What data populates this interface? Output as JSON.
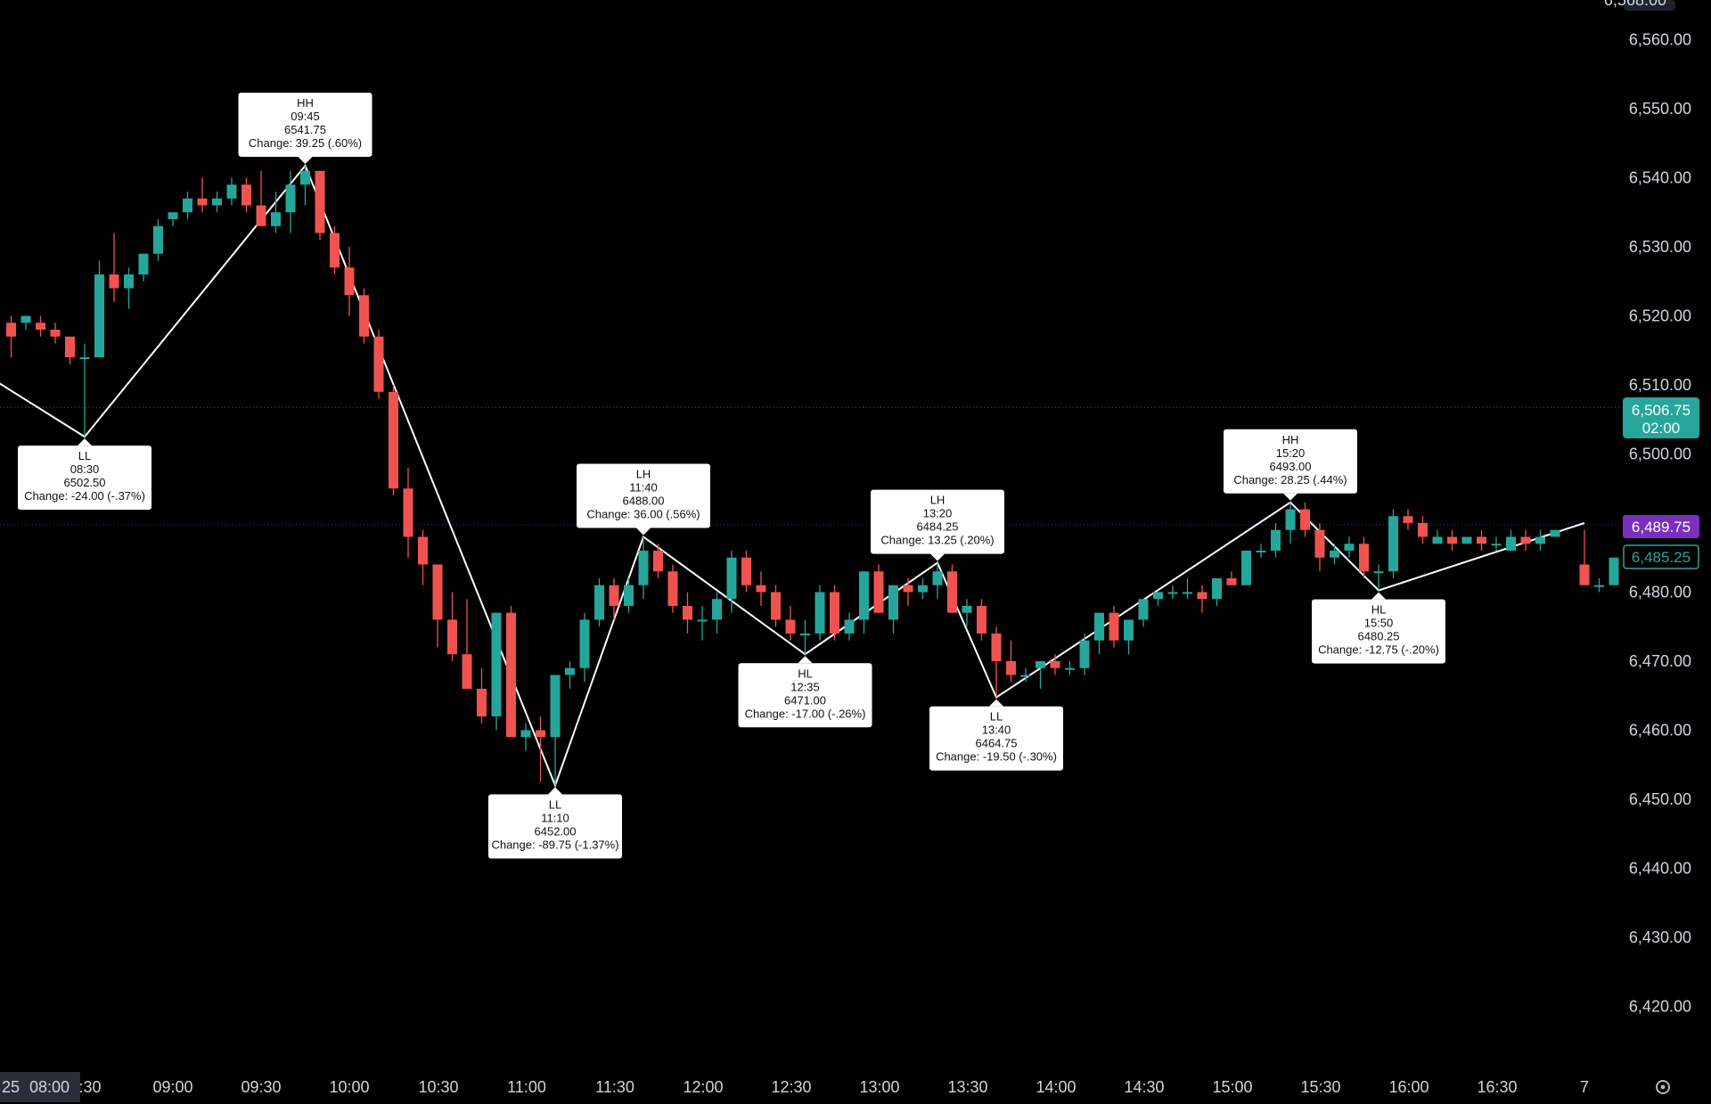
{
  "colors": {
    "background": "#000000",
    "bullish": "#26a69a",
    "bearish": "#ef5350",
    "zigzag": "#ffffff",
    "axis_text": "#d1d4dc",
    "price_badge_bg": "#26a69a",
    "purple_badge_bg": "#7b2fbf",
    "pivot_box_bg": "#ffffff"
  },
  "price_axis": {
    "ticks": [
      "6,560.00",
      "6,550.00",
      "6,540.00",
      "6,530.00",
      "6,520.00",
      "6,510.00",
      "6,500.00",
      "6,490.00",
      "6,480.00",
      "6,470.00",
      "6,460.00",
      "6,450.00",
      "6,440.00",
      "6,430.00",
      "6,420.00"
    ],
    "top_cut_label": "6,568.00"
  },
  "time_axis": {
    "current_date_label": "25",
    "current_time_label": "08:00",
    "ticks": [
      ":30",
      "09:00",
      "09:30",
      "10:00",
      "10:30",
      "11:00",
      "11:30",
      "12:00",
      "12:30",
      "13:00",
      "13:30",
      "14:00",
      "14:30",
      "15:00",
      "15:30",
      "16:00",
      "16:30",
      "7"
    ],
    "settings_icon": "gear-icon"
  },
  "badges": {
    "last_price": "6,506.75",
    "countdown": "02:00",
    "purple_level": "6,489.75",
    "outline_level": "6,485.25"
  },
  "chart_data": {
    "type": "candlestick",
    "y_range": [
      6413,
      6568
    ],
    "interval_minutes": 5,
    "candles": [
      {
        "t": "08:05",
        "o": 6519,
        "h": 6520,
        "l": 6514,
        "c": 6517
      },
      {
        "t": "08:10",
        "o": 6519,
        "h": 6520,
        "l": 6518,
        "c": 6520
      },
      {
        "t": "08:15",
        "o": 6519,
        "h": 6520,
        "l": 6517,
        "c": 6518
      },
      {
        "t": "08:20",
        "o": 6518,
        "h": 6519,
        "l": 6516,
        "c": 6517
      },
      {
        "t": "08:25",
        "o": 6517,
        "h": 6517,
        "l": 6513,
        "c": 6514
      },
      {
        "t": "08:30",
        "o": 6514,
        "h": 6516,
        "l": 6502.5,
        "c": 6514
      },
      {
        "t": "08:35",
        "o": 6514,
        "h": 6528,
        "l": 6514,
        "c": 6526
      },
      {
        "t": "08:40",
        "o": 6526,
        "h": 6532,
        "l": 6522,
        "c": 6524
      },
      {
        "t": "08:45",
        "o": 6524,
        "h": 6527,
        "l": 6521,
        "c": 6526
      },
      {
        "t": "08:50",
        "o": 6526,
        "h": 6529,
        "l": 6525,
        "c": 6529
      },
      {
        "t": "08:55",
        "o": 6529,
        "h": 6534,
        "l": 6528,
        "c": 6533
      },
      {
        "t": "09:00",
        "o": 6534,
        "h": 6535,
        "l": 6533,
        "c": 6535
      },
      {
        "t": "09:05",
        "o": 6535,
        "h": 6538,
        "l": 6534,
        "c": 6537
      },
      {
        "t": "09:10",
        "o": 6537,
        "h": 6540,
        "l": 6535,
        "c": 6536
      },
      {
        "t": "09:15",
        "o": 6536,
        "h": 6538,
        "l": 6535,
        "c": 6537
      },
      {
        "t": "09:20",
        "o": 6537,
        "h": 6540,
        "l": 6536,
        "c": 6539
      },
      {
        "t": "09:25",
        "o": 6539,
        "h": 6540,
        "l": 6535,
        "c": 6536
      },
      {
        "t": "09:30",
        "o": 6536,
        "h": 6541,
        "l": 6533,
        "c": 6533
      },
      {
        "t": "09:35",
        "o": 6533,
        "h": 6538,
        "l": 6532,
        "c": 6535
      },
      {
        "t": "09:40",
        "o": 6535,
        "h": 6541,
        "l": 6532,
        "c": 6539
      },
      {
        "t": "09:45",
        "o": 6539,
        "h": 6541.75,
        "l": 6536,
        "c": 6541
      },
      {
        "t": "09:50",
        "o": 6541,
        "h": 6541,
        "l": 6531,
        "c": 6532
      },
      {
        "t": "09:55",
        "o": 6532,
        "h": 6533,
        "l": 6526,
        "c": 6527
      },
      {
        "t": "10:00",
        "o": 6527,
        "h": 6530,
        "l": 6520,
        "c": 6523
      },
      {
        "t": "10:05",
        "o": 6523,
        "h": 6524,
        "l": 6516,
        "c": 6517
      },
      {
        "t": "10:10",
        "o": 6517,
        "h": 6518,
        "l": 6508,
        "c": 6509
      },
      {
        "t": "10:15",
        "o": 6509,
        "h": 6510,
        "l": 6494,
        "c": 6495
      },
      {
        "t": "10:20",
        "o": 6495,
        "h": 6498,
        "l": 6485,
        "c": 6488
      },
      {
        "t": "10:25",
        "o": 6488,
        "h": 6489,
        "l": 6481,
        "c": 6484
      },
      {
        "t": "10:30",
        "o": 6484,
        "h": 6484,
        "l": 6472,
        "c": 6476
      },
      {
        "t": "10:35",
        "o": 6476,
        "h": 6480,
        "l": 6470,
        "c": 6471
      },
      {
        "t": "10:40",
        "o": 6471,
        "h": 6479,
        "l": 6467,
        "c": 6466
      },
      {
        "t": "10:45",
        "o": 6466,
        "h": 6469,
        "l": 6461,
        "c": 6462
      },
      {
        "t": "10:50",
        "o": 6462,
        "h": 6477,
        "l": 6460,
        "c": 6477
      },
      {
        "t": "10:55",
        "o": 6477,
        "h": 6478,
        "l": 6459,
        "c": 6459
      },
      {
        "t": "11:00",
        "o": 6459,
        "h": 6461,
        "l": 6457,
        "c": 6460
      },
      {
        "t": "11:05",
        "o": 6460,
        "h": 6462,
        "l": 6452.5,
        "c": 6459
      },
      {
        "t": "11:10",
        "o": 6459,
        "h": 6468,
        "l": 6452,
        "c": 6468
      },
      {
        "t": "11:15",
        "o": 6468,
        "h": 6470,
        "l": 6466,
        "c": 6469
      },
      {
        "t": "11:20",
        "o": 6469,
        "h": 6477,
        "l": 6467,
        "c": 6476
      },
      {
        "t": "11:25",
        "o": 6476,
        "h": 6482,
        "l": 6475,
        "c": 6481
      },
      {
        "t": "11:30",
        "o": 6481,
        "h": 6482,
        "l": 6476,
        "c": 6478
      },
      {
        "t": "11:35",
        "o": 6478,
        "h": 6482,
        "l": 6477,
        "c": 6481
      },
      {
        "t": "11:40",
        "o": 6481,
        "h": 6488,
        "l": 6479,
        "c": 6486
      },
      {
        "t": "11:45",
        "o": 6486,
        "h": 6487,
        "l": 6482,
        "c": 6483
      },
      {
        "t": "11:50",
        "o": 6483,
        "h": 6484,
        "l": 6477,
        "c": 6478
      },
      {
        "t": "11:55",
        "o": 6478,
        "h": 6480,
        "l": 6474,
        "c": 6476
      },
      {
        "t": "12:00",
        "o": 6476,
        "h": 6478,
        "l": 6473,
        "c": 6476
      },
      {
        "t": "12:05",
        "o": 6476,
        "h": 6480,
        "l": 6474,
        "c": 6479
      },
      {
        "t": "12:10",
        "o": 6479,
        "h": 6486,
        "l": 6477,
        "c": 6485
      },
      {
        "t": "12:15",
        "o": 6485,
        "h": 6486,
        "l": 6480,
        "c": 6481
      },
      {
        "t": "12:20",
        "o": 6481,
        "h": 6483,
        "l": 6478,
        "c": 6480
      },
      {
        "t": "12:25",
        "o": 6480,
        "h": 6481,
        "l": 6475,
        "c": 6476
      },
      {
        "t": "12:30",
        "o": 6476,
        "h": 6478,
        "l": 6473,
        "c": 6474
      },
      {
        "t": "12:35",
        "o": 6474,
        "h": 6476,
        "l": 6471,
        "c": 6474
      },
      {
        "t": "12:40",
        "o": 6474,
        "h": 6481,
        "l": 6473,
        "c": 6480
      },
      {
        "t": "12:45",
        "o": 6480,
        "h": 6481,
        "l": 6473,
        "c": 6474
      },
      {
        "t": "12:50",
        "o": 6474,
        "h": 6477,
        "l": 6473,
        "c": 6476
      },
      {
        "t": "12:55",
        "o": 6476,
        "h": 6483,
        "l": 6474,
        "c": 6483
      },
      {
        "t": "13:00",
        "o": 6483,
        "h": 6484,
        "l": 6477,
        "c": 6477
      },
      {
        "t": "13:05",
        "o": 6476,
        "h": 6481,
        "l": 6474,
        "c": 6481
      },
      {
        "t": "13:10",
        "o": 6481,
        "h": 6482,
        "l": 6478,
        "c": 6480
      },
      {
        "t": "13:15",
        "o": 6480,
        "h": 6482,
        "l": 6479,
        "c": 6481
      },
      {
        "t": "13:20",
        "o": 6481,
        "h": 6484.25,
        "l": 6479,
        "c": 6483
      },
      {
        "t": "13:25",
        "o": 6483,
        "h": 6484,
        "l": 6477,
        "c": 6477
      },
      {
        "t": "13:30",
        "o": 6477,
        "h": 6479,
        "l": 6475,
        "c": 6478
      },
      {
        "t": "13:35",
        "o": 6478,
        "h": 6479,
        "l": 6473,
        "c": 6474
      },
      {
        "t": "13:40",
        "o": 6474,
        "h": 6475,
        "l": 6464.75,
        "c": 6470
      },
      {
        "t": "13:45",
        "o": 6470,
        "h": 6473,
        "l": 6467,
        "c": 6468
      },
      {
        "t": "13:50",
        "o": 6468,
        "h": 6469,
        "l": 6467,
        "c": 6468
      },
      {
        "t": "13:55",
        "o": 6469,
        "h": 6470,
        "l": 6466,
        "c": 6470
      },
      {
        "t": "14:00",
        "o": 6470,
        "h": 6471,
        "l": 6468,
        "c": 6469
      },
      {
        "t": "14:05",
        "o": 6469,
        "h": 6470,
        "l": 6468,
        "c": 6469
      },
      {
        "t": "14:10",
        "o": 6469,
        "h": 6474,
        "l": 6468,
        "c": 6473
      },
      {
        "t": "14:15",
        "o": 6473,
        "h": 6477,
        "l": 6471,
        "c": 6477
      },
      {
        "t": "14:20",
        "o": 6477,
        "h": 6478,
        "l": 6472,
        "c": 6473
      },
      {
        "t": "14:25",
        "o": 6473,
        "h": 6476,
        "l": 6471,
        "c": 6476
      },
      {
        "t": "14:30",
        "o": 6476,
        "h": 6479,
        "l": 6475,
        "c": 6479
      },
      {
        "t": "14:35",
        "o": 6479,
        "h": 6480,
        "l": 6478,
        "c": 6480
      },
      {
        "t": "14:40",
        "o": 6480,
        "h": 6481,
        "l": 6479,
        "c": 6480
      },
      {
        "t": "14:45",
        "o": 6480,
        "h": 6482,
        "l": 6479,
        "c": 6480
      },
      {
        "t": "14:50",
        "o": 6480,
        "h": 6481,
        "l": 6477,
        "c": 6479
      },
      {
        "t": "14:55",
        "o": 6479,
        "h": 6482,
        "l": 6478,
        "c": 6482
      },
      {
        "t": "15:00",
        "o": 6482,
        "h": 6483,
        "l": 6481,
        "c": 6481
      },
      {
        "t": "15:05",
        "o": 6481,
        "h": 6486,
        "l": 6481,
        "c": 6486
      },
      {
        "t": "15:10",
        "o": 6486,
        "h": 6487,
        "l": 6485,
        "c": 6486
      },
      {
        "t": "15:15",
        "o": 6486,
        "h": 6490,
        "l": 6485,
        "c": 6489
      },
      {
        "t": "15:20",
        "o": 6489,
        "h": 6493,
        "l": 6487,
        "c": 6492
      },
      {
        "t": "15:25",
        "o": 6492,
        "h": 6493,
        "l": 6488,
        "c": 6489
      },
      {
        "t": "15:30",
        "o": 6489,
        "h": 6490,
        "l": 6483,
        "c": 6485
      },
      {
        "t": "15:35",
        "o": 6485,
        "h": 6487,
        "l": 6484,
        "c": 6486
      },
      {
        "t": "15:40",
        "o": 6486,
        "h": 6488,
        "l": 6485,
        "c": 6487
      },
      {
        "t": "15:45",
        "o": 6487,
        "h": 6488,
        "l": 6482,
        "c": 6483
      },
      {
        "t": "15:50",
        "o": 6483,
        "h": 6484,
        "l": 6480.25,
        "c": 6483
      },
      {
        "t": "15:55",
        "o": 6483,
        "h": 6492,
        "l": 6482,
        "c": 6491
      },
      {
        "t": "16:00",
        "o": 6491,
        "h": 6492,
        "l": 6489,
        "c": 6490
      },
      {
        "t": "16:05",
        "o": 6490,
        "h": 6491,
        "l": 6487,
        "c": 6488
      },
      {
        "t": "16:10",
        "o": 6487,
        "h": 6489,
        "l": 6487,
        "c": 6488
      },
      {
        "t": "16:15",
        "o": 6488,
        "h": 6489,
        "l": 6486,
        "c": 6487
      },
      {
        "t": "16:20",
        "o": 6487,
        "h": 6488,
        "l": 6487,
        "c": 6488
      },
      {
        "t": "16:25",
        "o": 6488,
        "h": 6489,
        "l": 6486,
        "c": 6487
      },
      {
        "t": "16:30",
        "o": 6487,
        "h": 6488,
        "l": 6486,
        "c": 6487
      },
      {
        "t": "16:35",
        "o": 6486,
        "h": 6489,
        "l": 6486,
        "c": 6488
      },
      {
        "t": "16:40",
        "o": 6488,
        "h": 6489,
        "l": 6486,
        "c": 6487
      },
      {
        "t": "16:45",
        "o": 6487,
        "h": 6489,
        "l": 6486,
        "c": 6488
      },
      {
        "t": "16:50",
        "o": 6488,
        "h": 6489,
        "l": 6488,
        "c": 6489
      },
      {
        "t": "17:00",
        "o": 6484,
        "h": 6489,
        "l": 6481,
        "c": 6481
      },
      {
        "t": "17:05",
        "o": 6481,
        "h": 6482,
        "l": 6480,
        "c": 6481
      },
      {
        "t": "17:10",
        "o": 6481,
        "h": 6485,
        "l": 6481,
        "c": 6485
      }
    ],
    "zigzag": [
      {
        "t": "08:00",
        "price": 6510.5
      },
      {
        "t": "08:30",
        "price": 6502.5
      },
      {
        "t": "09:45",
        "price": 6541.75
      },
      {
        "t": "11:10",
        "price": 6452.0
      },
      {
        "t": "11:40",
        "price": 6488.0
      },
      {
        "t": "12:35",
        "price": 6471.0
      },
      {
        "t": "13:20",
        "price": 6484.25
      },
      {
        "t": "13:40",
        "price": 6464.75
      },
      {
        "t": "15:20",
        "price": 6493.0
      },
      {
        "t": "15:50",
        "price": 6480.25
      },
      {
        "t": "17:00",
        "price": 6490.0
      }
    ],
    "pivots": [
      {
        "t": "08:30",
        "price": 6502.5,
        "side": "below",
        "lines": [
          "LL",
          "08:30",
          "6502.50",
          "Change: -24.00 (-.37%)"
        ]
      },
      {
        "t": "09:45",
        "price": 6541.75,
        "side": "above",
        "lines": [
          "HH",
          "09:45",
          "6541.75",
          "Change: 39.25 (.60%)"
        ]
      },
      {
        "t": "11:10",
        "price": 6452.0,
        "side": "below",
        "lines": [
          "LL",
          "11:10",
          "6452.00",
          "Change: -89.75 (-1.37%)"
        ]
      },
      {
        "t": "11:40",
        "price": 6488.0,
        "side": "above",
        "lines": [
          "LH",
          "11:40",
          "6488.00",
          "Change: 36.00 (.56%)"
        ]
      },
      {
        "t": "12:35",
        "price": 6471.0,
        "side": "below",
        "lines": [
          "HL",
          "12:35",
          "6471.00",
          "Change: -17.00 (-.26%)"
        ]
      },
      {
        "t": "13:20",
        "price": 6484.25,
        "side": "above",
        "lines": [
          "LH",
          "13:20",
          "6484.25",
          "Change: 13.25 (.20%)"
        ]
      },
      {
        "t": "13:40",
        "price": 6464.75,
        "side": "below",
        "lines": [
          "LL",
          "13:40",
          "6464.75",
          "Change: -19.50 (-.30%)"
        ]
      },
      {
        "t": "15:20",
        "price": 6493.0,
        "side": "above",
        "lines": [
          "HH",
          "15:20",
          "6493.00",
          "Change: 28.25 (.44%)"
        ]
      },
      {
        "t": "15:50",
        "price": 6480.25,
        "side": "below",
        "lines": [
          "HL",
          "15:50",
          "6480.25",
          "Change: -12.75 (-.20%)"
        ]
      }
    ],
    "last_price": 6506.75,
    "purple_level": 6489.75,
    "outline_level": 6485.25
  }
}
